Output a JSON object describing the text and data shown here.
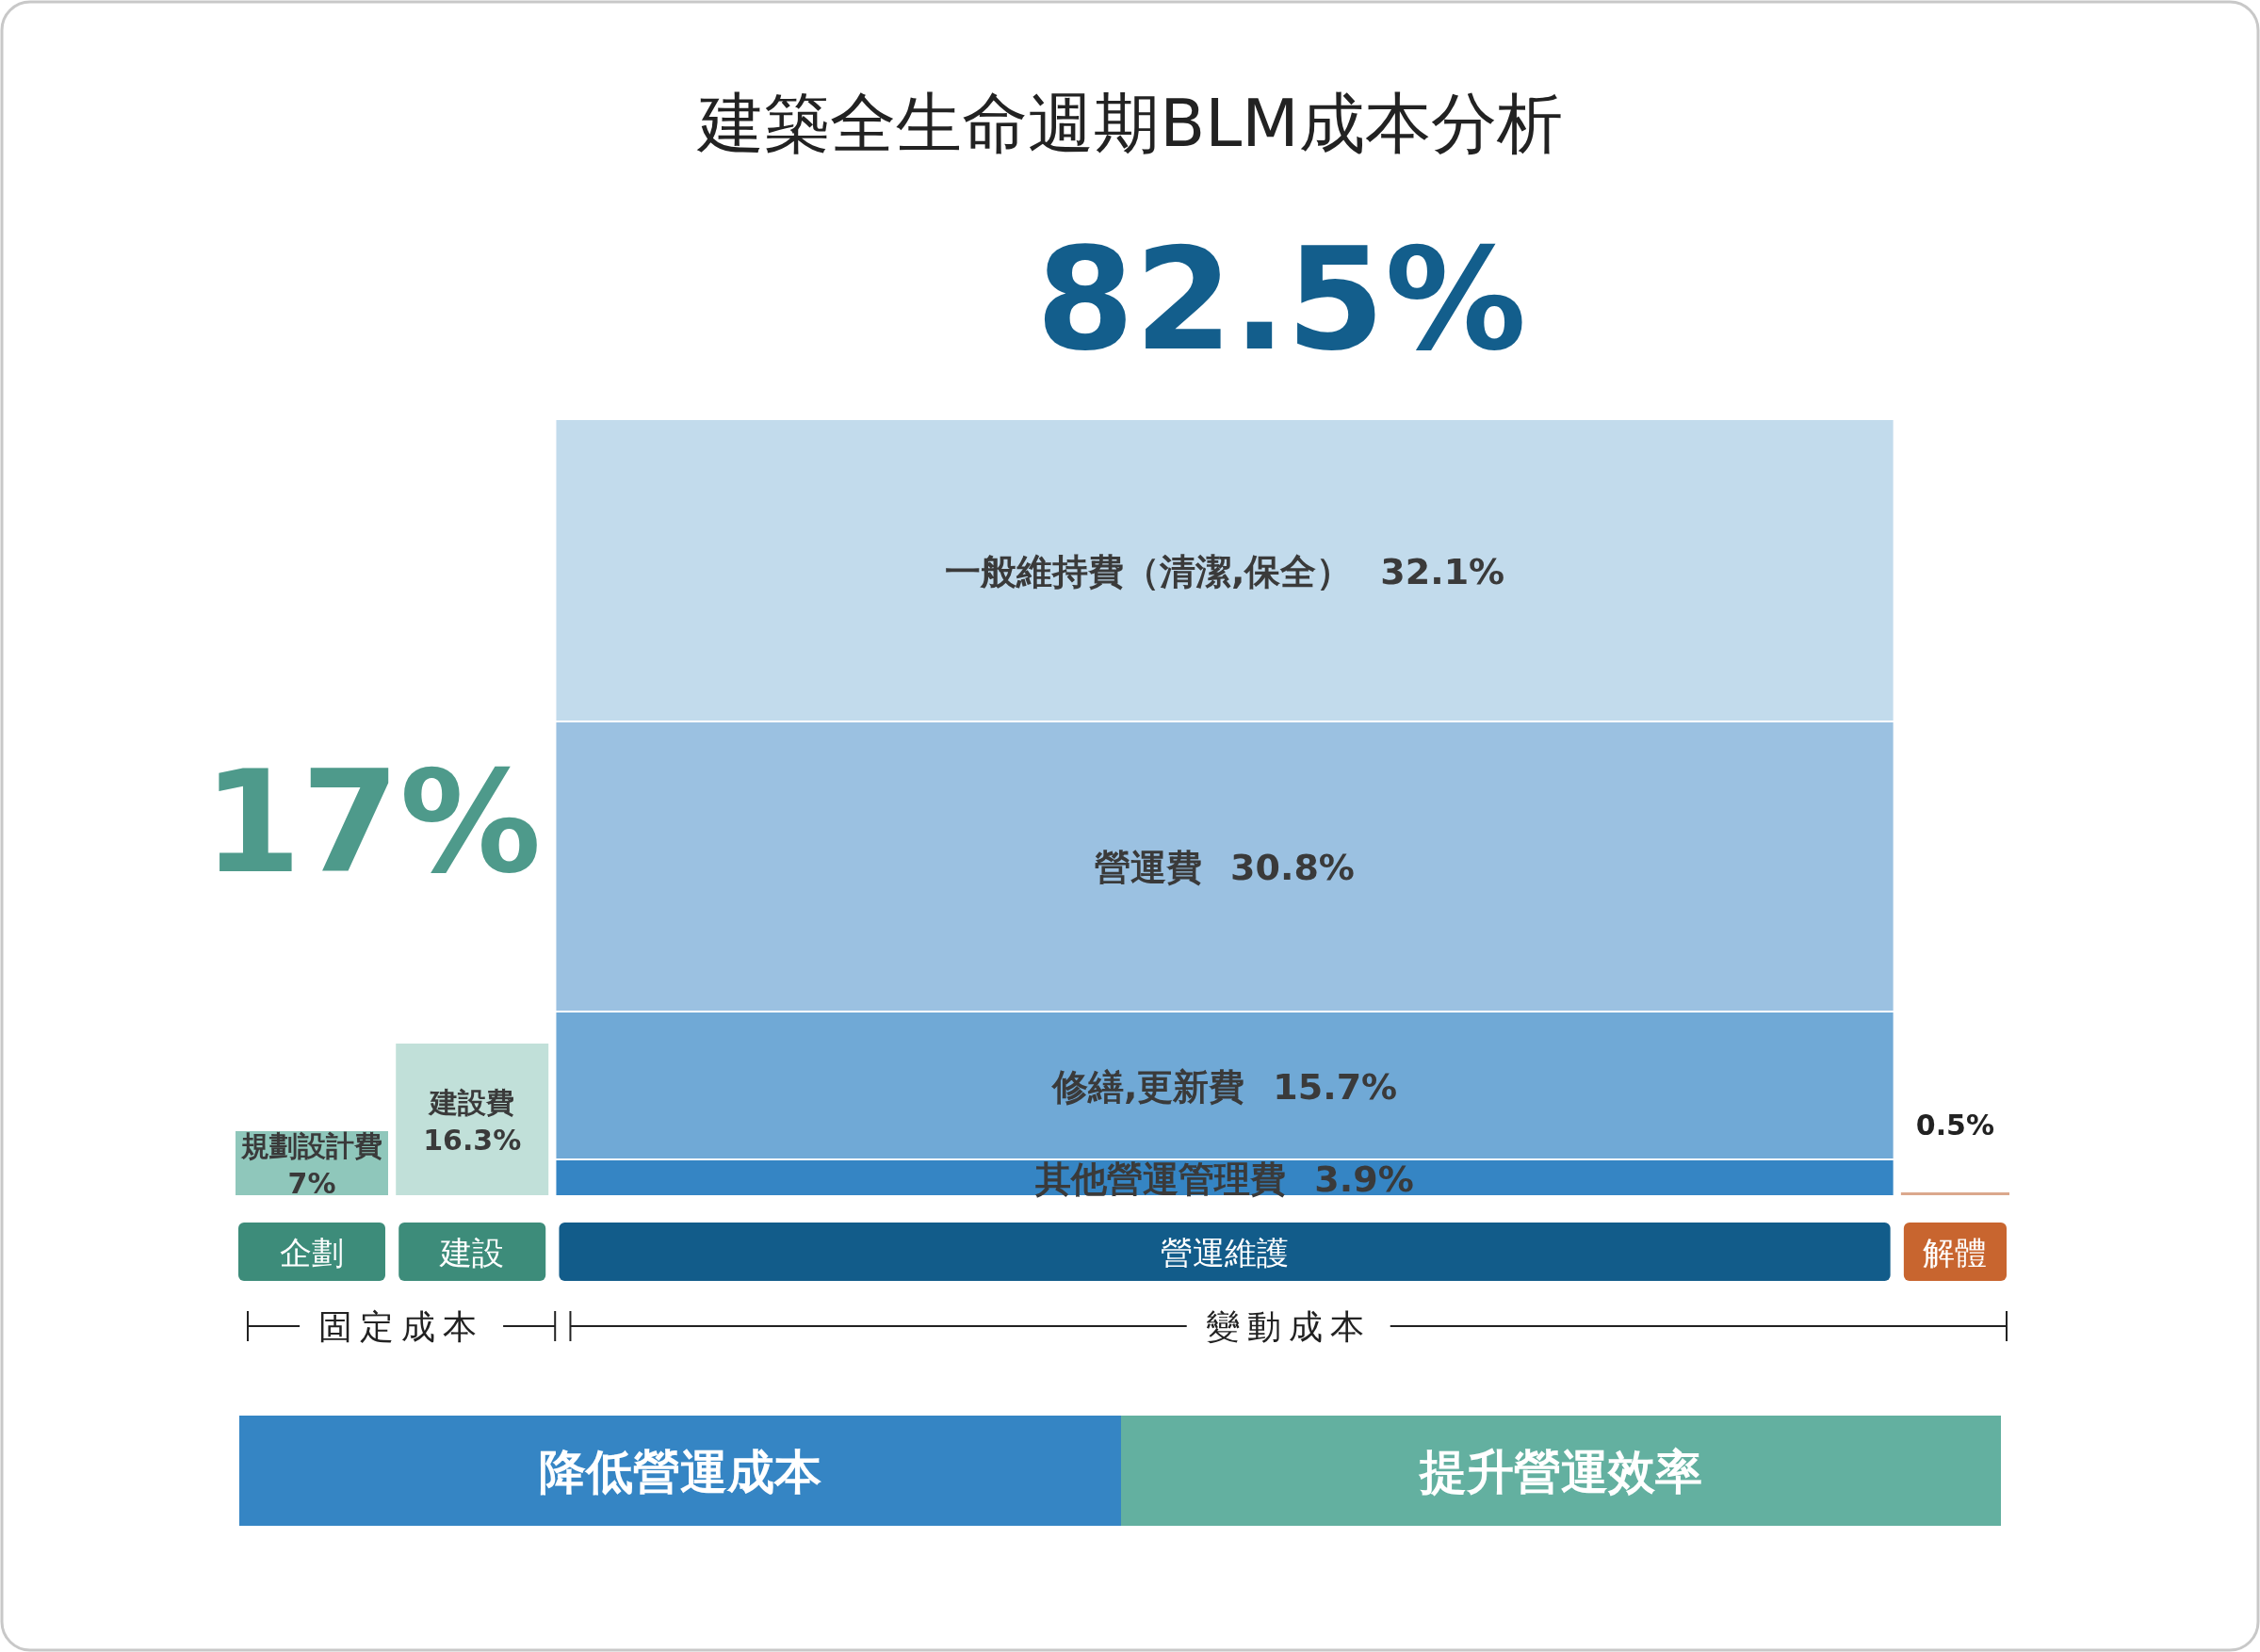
{
  "chart_data": {
    "type": "bar",
    "stacked": true,
    "title": "建築全生命週期BLM成本分析",
    "categories": [
      "企劃",
      "建設",
      "營運維護",
      "解體"
    ],
    "series": [
      {
        "name": "規劃設計費",
        "color": "#8fc7bb",
        "values": [
          7,
          null,
          null,
          null
        ],
        "value_labels": [
          "7%",
          null,
          null,
          null
        ]
      },
      {
        "name": "建設費",
        "color": "#c1e0d9",
        "values": [
          null,
          16.3,
          null,
          null
        ],
        "value_labels": [
          null,
          "16.3%",
          null,
          null
        ]
      },
      {
        "name": "其他營運管理費",
        "color": "#3585c4",
        "values": [
          null,
          null,
          3.9,
          null
        ],
        "value_labels": [
          null,
          null,
          "3.9%",
          null
        ]
      },
      {
        "name": "修繕,更新費",
        "color": "#70a9d6",
        "values": [
          null,
          null,
          15.7,
          null
        ],
        "value_labels": [
          null,
          null,
          "15.7%",
          null
        ]
      },
      {
        "name": "營運費",
        "color": "#9bc1e1",
        "values": [
          null,
          null,
          30.8,
          null
        ],
        "value_labels": [
          null,
          null,
          "30.8%",
          null
        ]
      },
      {
        "name": "一般維持費（清潔,保全）",
        "color": "#c2dbec",
        "values": [
          null,
          null,
          32.1,
          null
        ],
        "value_labels": [
          null,
          null,
          "32.1%",
          null
        ]
      },
      {
        "color": "#dba88c",
        "values": [
          null,
          null,
          null,
          0.5
        ],
        "value_labels": [
          null,
          null,
          null,
          "0.5%"
        ]
      }
    ],
    "annotations": [
      "17%",
      "82.5%",
      "固定成本",
      "變動成本",
      "降低營運成本",
      "提升營運效率"
    ]
  }
}
